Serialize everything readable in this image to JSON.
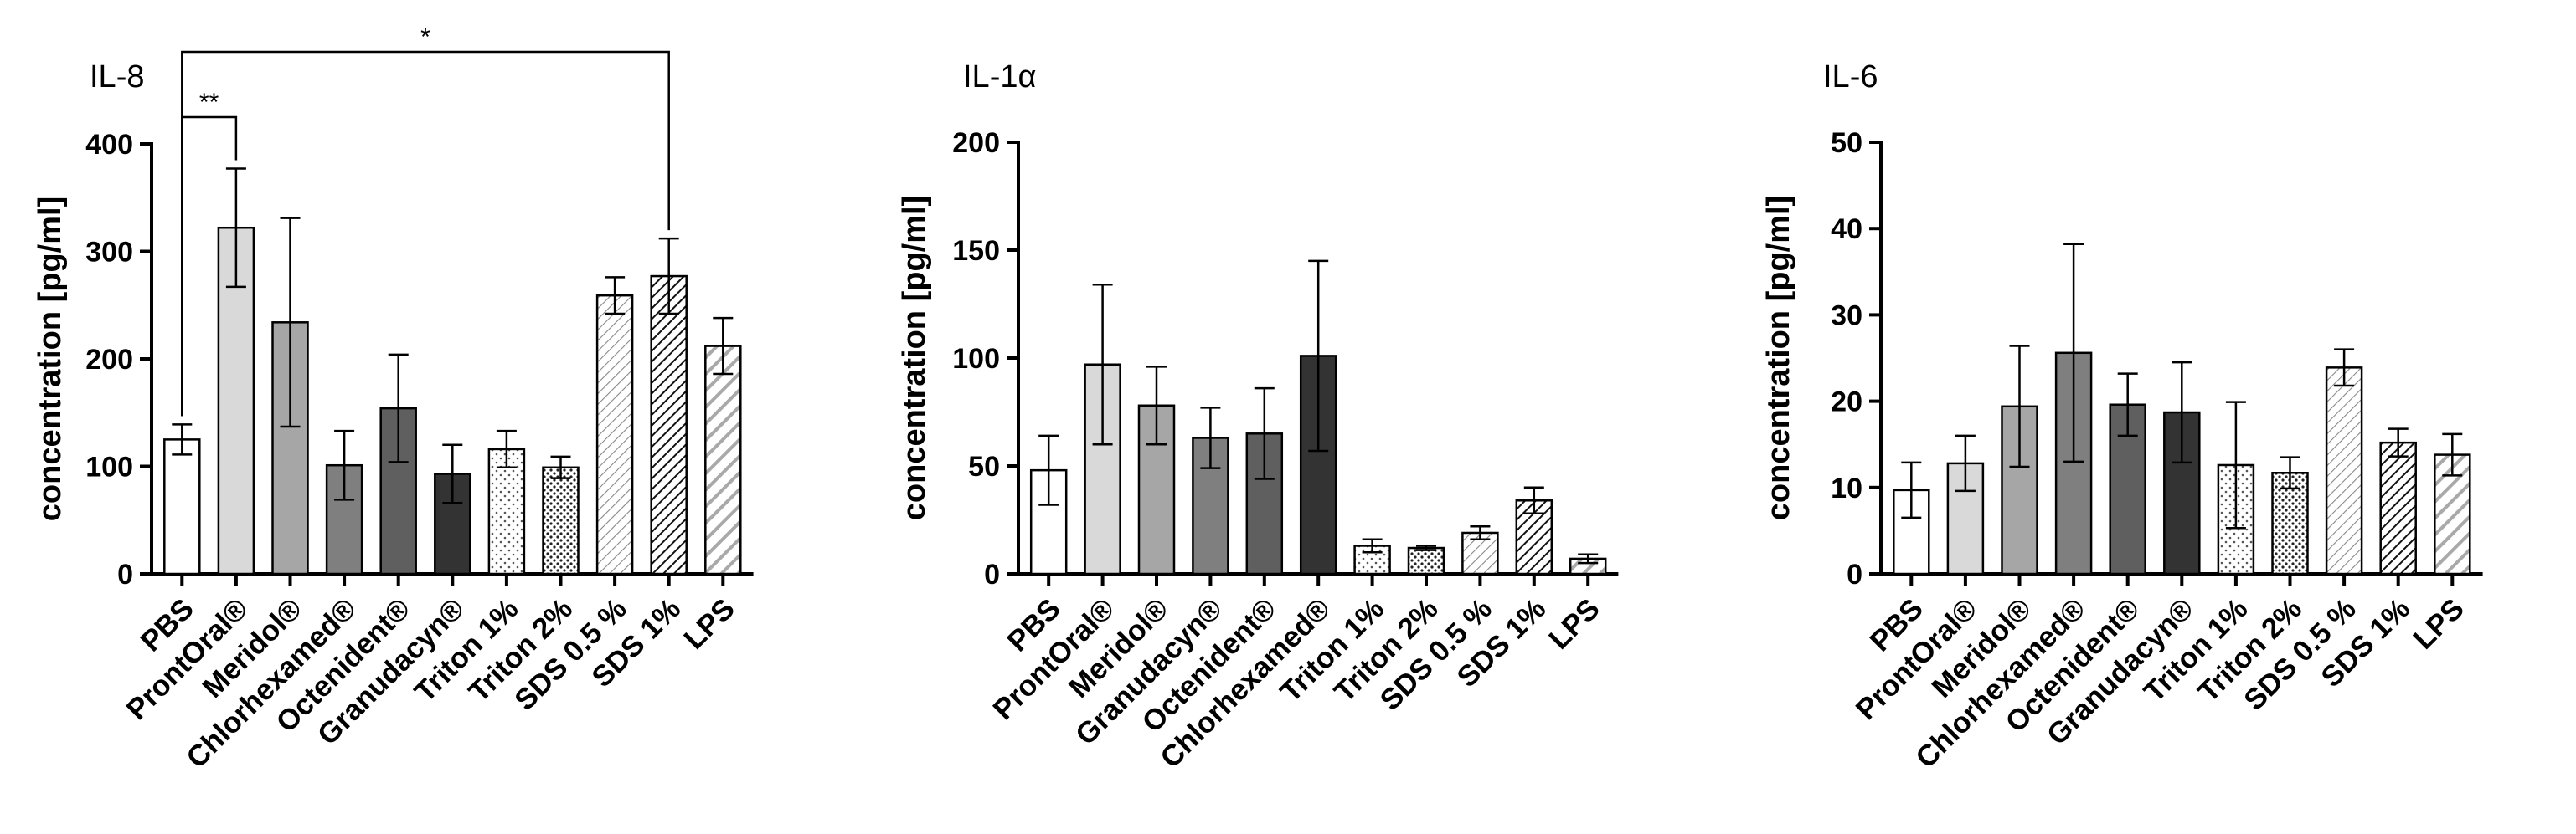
{
  "colors": {
    "axis": "#000000",
    "bar_fills": [
      "#ffffff",
      "#d9d9d9",
      "#a6a6a6",
      "#7f7f7f",
      "#5f5f5f",
      "#333333",
      "#ffffff",
      "#ffffff",
      "#ffffff",
      "#ffffff",
      "#b0b0b0"
    ]
  },
  "chart_data": [
    {
      "type": "bar",
      "title": "IL-8",
      "ylabel": "concentration [pg/ml]",
      "ylim": [
        0,
        400
      ],
      "yticks": [
        0,
        100,
        200,
        300,
        400
      ],
      "categories": [
        "PBS",
        "ProntOral®",
        "Meridol®",
        "Chlorhexamed®",
        "Octenident®",
        "Granudacyn®",
        "Triton 1%",
        "Triton 2%",
        "SDS 0.5 %",
        "SDS 1%",
        "LPS"
      ],
      "patterns": [
        "solid-white",
        "solid-lightgray",
        "solid-gray",
        "solid-darkgray",
        "solid-dimgray",
        "solid-black",
        "sparse-dots",
        "dense-dots",
        "thin-diagonal",
        "dense-diagonal",
        "wide-diagonal"
      ],
      "values": [
        125,
        322,
        234,
        101,
        154,
        93,
        116,
        99,
        259,
        277,
        212
      ],
      "errors": [
        14,
        55,
        97,
        32,
        50,
        27,
        17,
        10,
        17,
        35,
        26
      ],
      "significance": [
        {
          "from": 0,
          "to": 1,
          "label": "**"
        },
        {
          "from": 0,
          "to": 9,
          "label": "*"
        }
      ]
    },
    {
      "type": "bar",
      "title": "IL-1α",
      "ylabel": "concentration [pg/ml]",
      "ylim": [
        0,
        200
      ],
      "yticks": [
        0,
        50,
        100,
        150,
        200
      ],
      "categories": [
        "PBS",
        "ProntOral®",
        "Meridol®",
        "Granudacyn®",
        "Octenident®",
        "Chlorhexamed®",
        "Triton 1%",
        "Triton 2%",
        "SDS 0.5 %",
        "SDS 1%",
        "LPS"
      ],
      "patterns": [
        "solid-white",
        "solid-lightgray",
        "solid-gray",
        "solid-darkgray",
        "solid-dimgray",
        "solid-black",
        "sparse-dots",
        "dense-dots",
        "thin-diagonal",
        "dense-diagonal",
        "wide-diagonal"
      ],
      "values": [
        48,
        97,
        78,
        63,
        65,
        101,
        13,
        12,
        19,
        34,
        7
      ],
      "errors": [
        16,
        37,
        18,
        14,
        21,
        44,
        3,
        1,
        3,
        6,
        2
      ],
      "significance": []
    },
    {
      "type": "bar",
      "title": "IL-6",
      "ylabel": "concentration [pg/ml]",
      "ylim": [
        0,
        50
      ],
      "yticks": [
        0,
        10,
        20,
        30,
        40,
        50
      ],
      "categories": [
        "PBS",
        "ProntOral®",
        "Meridol®",
        "Chlorhexamed®",
        "Octenident®",
        "Granudacyn®",
        "Triton 1%",
        "Triton 2%",
        "SDS 0.5 %",
        "SDS 1%",
        "LPS"
      ],
      "patterns": [
        "solid-white",
        "solid-lightgray",
        "solid-gray",
        "solid-darkgray",
        "solid-dimgray",
        "solid-black",
        "sparse-dots",
        "dense-dots",
        "thin-diagonal",
        "dense-diagonal",
        "wide-diagonal"
      ],
      "values": [
        9.7,
        12.8,
        19.4,
        25.6,
        19.6,
        18.7,
        12.6,
        11.7,
        23.9,
        15.2,
        13.8
      ],
      "errors": [
        3.2,
        3.2,
        7.0,
        12.6,
        3.6,
        5.8,
        7.3,
        1.8,
        2.1,
        1.6,
        2.4
      ],
      "significance": []
    }
  ]
}
